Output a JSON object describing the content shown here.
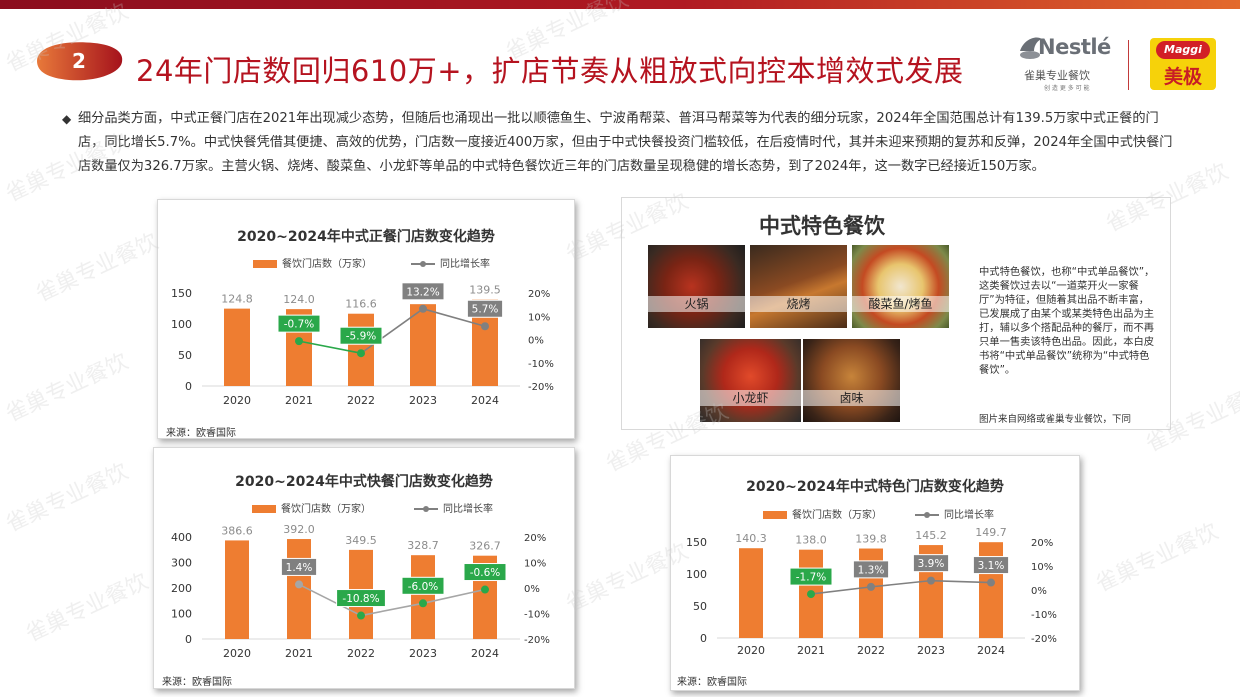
{
  "header": {
    "badge_number": "2",
    "headline": "24年门店数回归610万+，扩店节奏从粗放式向控本增效式发展",
    "logo_nestle_word": "Nestlé",
    "logo_nestle_sub": "雀巢专业餐饮",
    "logo_nestle_tag": "创 造 更 多 可 能",
    "logo_maggi_pill": "Maggi",
    "logo_maggi_cn": "美极"
  },
  "bullet_text": "细分品类方面，中式正餐门店在2021年出现减少态势，但随后也涌现出一批以顺德鱼生、宁波甬帮菜、普洱马帮菜等为代表的细分玩家，2024年全国范围总计有139.5万家中式正餐的门店，同比增长5.7%。中式快餐凭借其便捷、高效的优势，门店数一度接近400万家，但由于中式快餐投资门槛较低，在后疫情时代，其并未迎来预期的复苏和反弹，2024年全国中式快餐门店数量仅为326.7万家。主营火锅、烧烤、酸菜鱼、小龙虾等单品的中式特色餐饮近三年的门店数量呈现稳健的增长态势，到了2024年，这一数字已经接近150万家。",
  "chart_data": [
    {
      "type": "bar",
      "title": "2020~2024年中式正餐门店数变化趋势",
      "categories": [
        "2020",
        "2021",
        "2022",
        "2023",
        "2024"
      ],
      "series": [
        {
          "name": "餐饮门店数（万家）",
          "type": "bar",
          "axis": "left",
          "color": "#ee7d31",
          "values": [
            124.8,
            124.0,
            116.6,
            132.0,
            139.5
          ],
          "labels": [
            "124.8",
            "124.0",
            "116.6",
            "132.0",
            "139.5"
          ]
        },
        {
          "name": "同比增长率",
          "type": "line",
          "axis": "right",
          "color": "#808080",
          "values": [
            null,
            -0.7,
            -5.9,
            13.2,
            5.7
          ],
          "labels": [
            "",
            "-0.7%",
            "-5.9%",
            "13.2%",
            "5.7%"
          ],
          "label_colors": [
            "",
            "#2aa84a",
            "#2aa84a",
            "#808080",
            "#808080"
          ],
          "segment_colors": [
            "#2aa84a",
            "#808080",
            "#808080"
          ]
        }
      ],
      "ylim": [
        0,
        150
      ],
      "y_ticks": [
        "0",
        "50",
        "100",
        "150"
      ],
      "y2lim": [
        -20,
        20
      ],
      "y2_ticks": [
        "-20%",
        "-10%",
        "0%",
        "10%",
        "20%"
      ],
      "legend": "top",
      "source": "来源：欧睿国际"
    },
    {
      "type": "bar",
      "title": "2020~2024年中式快餐门店数变化趋势",
      "categories": [
        "2020",
        "2021",
        "2022",
        "2023",
        "2024"
      ],
      "series": [
        {
          "name": "餐饮门店数（万家）",
          "type": "bar",
          "axis": "left",
          "color": "#ee7d31",
          "values": [
            386.6,
            392.0,
            349.5,
            328.7,
            326.7
          ],
          "labels": [
            "386.6",
            "392.0",
            "349.5",
            "328.7",
            "326.7"
          ]
        },
        {
          "name": "同比增长率",
          "type": "line",
          "axis": "right",
          "color": "#a6a6a6",
          "values": [
            null,
            1.4,
            -10.8,
            -6.0,
            -0.6
          ],
          "labels": [
            "",
            "1.4%",
            "-10.8%",
            "-6.0%",
            "-0.6%"
          ],
          "label_colors": [
            "",
            "#808080",
            "#2aa84a",
            "#2aa84a",
            "#2aa84a"
          ],
          "segment_colors": [
            "#a6a6a6",
            "#a6a6a6",
            "#a6a6a6"
          ]
        }
      ],
      "ylim": [
        0,
        400
      ],
      "y_ticks": [
        "0",
        "100",
        "200",
        "300",
        "400"
      ],
      "y2lim": [
        -20,
        20
      ],
      "y2_ticks": [
        "-20%",
        "-10%",
        "0%",
        "10%",
        "20%"
      ],
      "legend": "top",
      "source": "来源：欧睿国际"
    },
    {
      "type": "bar",
      "title": "2020~2024年中式特色门店数变化趋势",
      "categories": [
        "2020",
        "2021",
        "2022",
        "2023",
        "2024"
      ],
      "series": [
        {
          "name": "餐饮门店数（万家）",
          "type": "bar",
          "axis": "left",
          "color": "#ee7d31",
          "values": [
            140.3,
            138.0,
            139.8,
            145.2,
            149.7
          ],
          "labels": [
            "140.3",
            "138.0",
            "139.8",
            "145.2",
            "149.7"
          ]
        },
        {
          "name": "同比增长率",
          "type": "line",
          "axis": "right",
          "color": "#808080",
          "values": [
            null,
            -1.7,
            1.3,
            3.9,
            3.1
          ],
          "labels": [
            "",
            "-1.7%",
            "1.3%",
            "3.9%",
            "3.1%"
          ],
          "label_colors": [
            "",
            "#2aa84a",
            "#808080",
            "#808080",
            "#808080"
          ],
          "segment_colors": [
            "#808080",
            "#808080",
            "#808080"
          ]
        }
      ],
      "ylim": [
        0,
        150
      ],
      "y_ticks": [
        "0",
        "50",
        "100",
        "150"
      ],
      "y2lim": [
        -20,
        20
      ],
      "y2_ticks": [
        "-20%",
        "-10%",
        "0%",
        "10%",
        "20%"
      ],
      "legend": "top",
      "source": "来源：欧睿国际"
    }
  ],
  "specialty": {
    "title": "中式特色餐饮",
    "photos": [
      {
        "caption": "火锅",
        "icon": "hotpot-photo"
      },
      {
        "caption": "烧烤",
        "icon": "bbq-photo"
      },
      {
        "caption": "酸菜鱼/烤鱼",
        "icon": "fish-photo"
      },
      {
        "caption": "小龙虾",
        "icon": "crayfish-photo"
      },
      {
        "caption": "卤味",
        "icon": "braised-photo"
      }
    ],
    "description": "中式特色餐饮，也称“中式单品餐饮”，这类餐饮过去以“一道菜开火一家餐厅”为特征，但随着其出品不断丰富，已发展成了由某个或某类特色出品为主打，辅以多个搭配品种的餐厅，而不再只单一售卖该特色出品。因此，本白皮书将“中式单品餐饮”统称为“中式特色餐饮”。",
    "note": "图片来自网络或雀巢专业餐饮，下同"
  },
  "watermark_text": "雀巢专业餐饮",
  "colors": {
    "brand_red": "#b5131f",
    "bar_orange": "#ee7d31",
    "growth_green": "#2aa84a",
    "label_gray": "#808080"
  }
}
